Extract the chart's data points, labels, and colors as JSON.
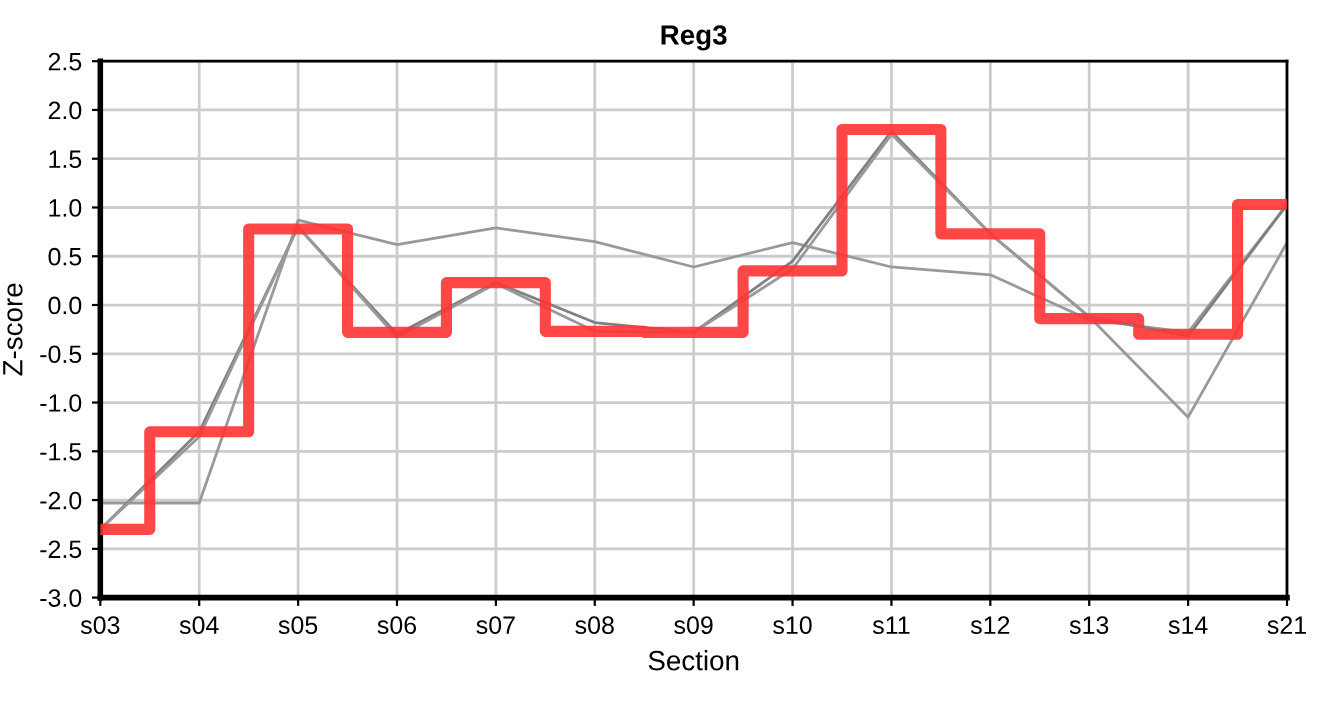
{
  "chart_data": {
    "type": "line",
    "title": "Reg3",
    "xlabel": "Section",
    "ylabel": "Z-score",
    "categories": [
      "s03",
      "s04",
      "s05",
      "s06",
      "s07",
      "s08",
      "s09",
      "s10",
      "s11",
      "s12",
      "s13",
      "s14",
      "s21"
    ],
    "series": [
      {
        "color": "#999999",
        "values": [
          -2.03,
          -2.03,
          0.87,
          0.62,
          0.79,
          0.65,
          0.39,
          0.64,
          0.39,
          0.31,
          -0.15,
          -0.28,
          1.03
        ]
      },
      {
        "color": "#808080",
        "values": [
          -2.3,
          -1.3,
          0.8,
          -0.3,
          0.23,
          -0.18,
          -0.28,
          0.45,
          1.78,
          0.73,
          -0.12,
          -0.32,
          1.03
        ]
      },
      {
        "color": "#999999",
        "values": [
          -2.3,
          -1.35,
          0.8,
          -0.33,
          0.22,
          -0.27,
          -0.28,
          0.37,
          1.75,
          0.73,
          -0.12,
          -1.15,
          0.64
        ]
      },
      {
        "type": "step",
        "color": "#ff3333",
        "values": [
          -2.3,
          -1.3,
          0.78,
          -0.28,
          0.23,
          -0.27,
          -0.28,
          0.35,
          1.8,
          0.73,
          -0.14,
          -0.3,
          1.03
        ]
      }
    ],
    "ylim": [
      -3.0,
      2.5
    ],
    "yticks": [
      {
        "value": -3.0,
        "label": "-3.0"
      },
      {
        "value": -2.5,
        "label": "-2.5"
      },
      {
        "value": -2.0,
        "label": "-2.0"
      },
      {
        "value": -1.5,
        "label": "-1.5"
      },
      {
        "value": -1.0,
        "label": "-1.0"
      },
      {
        "value": -0.5,
        "label": "-0.5"
      },
      {
        "value": 0.0,
        "label": "0.0"
      },
      {
        "value": 0.5,
        "label": "0.5"
      },
      {
        "value": 1.0,
        "label": "1.0"
      },
      {
        "value": 1.5,
        "label": "1.5"
      },
      {
        "value": 2.0,
        "label": "2.0"
      },
      {
        "value": 2.5,
        "label": "2.5"
      }
    ],
    "grid": true,
    "marker": "none",
    "line_style": "solid"
  }
}
